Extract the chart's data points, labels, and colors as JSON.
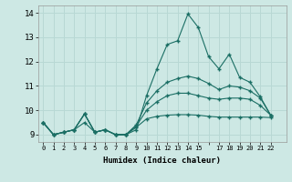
{
  "xlabel": "Humidex (Indice chaleur)",
  "ylabel": "",
  "background_color": "#cde8e4",
  "grid_color": "#b8d8d4",
  "line_color": "#1a6e64",
  "xlim": [
    -0.5,
    23.5
  ],
  "ylim": [
    8.7,
    14.3
  ],
  "series": [
    [
      9.5,
      9.0,
      9.1,
      9.2,
      9.85,
      9.1,
      9.2,
      9.0,
      9.0,
      9.2,
      10.6,
      11.7,
      12.7,
      12.85,
      13.95,
      13.4,
      12.2,
      11.7,
      12.3,
      11.35,
      11.15,
      10.55,
      9.8
    ],
    [
      9.5,
      9.0,
      9.1,
      9.2,
      9.85,
      9.1,
      9.2,
      9.0,
      9.0,
      9.4,
      10.3,
      10.8,
      11.15,
      11.3,
      11.4,
      11.3,
      11.1,
      10.85,
      11.0,
      10.95,
      10.8,
      10.5,
      9.8
    ],
    [
      9.5,
      9.0,
      9.1,
      9.2,
      9.85,
      9.1,
      9.2,
      9.0,
      9.0,
      9.35,
      10.0,
      10.35,
      10.6,
      10.7,
      10.7,
      10.6,
      10.5,
      10.45,
      10.5,
      10.5,
      10.45,
      10.2,
      9.8
    ],
    [
      9.5,
      9.0,
      9.1,
      9.2,
      9.5,
      9.1,
      9.2,
      9.0,
      9.0,
      9.3,
      9.65,
      9.75,
      9.8,
      9.82,
      9.82,
      9.8,
      9.75,
      9.72,
      9.72,
      9.72,
      9.72,
      9.72,
      9.7
    ]
  ]
}
